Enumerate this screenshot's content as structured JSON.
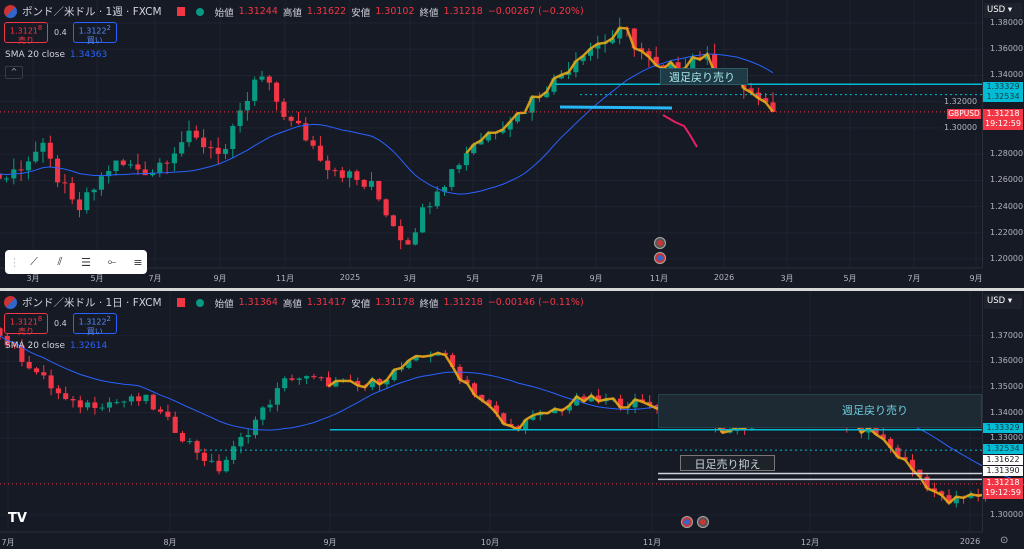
{
  "colors": {
    "up": "#089981",
    "down": "#f23645",
    "sma": "#2962ff",
    "annot": "#e6a817",
    "level": "#00bcd4",
    "bg": "#161a25"
  },
  "weekly": {
    "symbol": "ポンド／米ドル · 1週 · FXCM",
    "ohlc": {
      "open_label": "始値",
      "open": "1.31244",
      "high_label": "高値",
      "high": "1.31622",
      "low_label": "安値",
      "low": "1.30102",
      "close_label": "終値",
      "close": "1.31218",
      "change": "−0.00267 (−0.20%)"
    },
    "sell": {
      "price": "1.3121",
      "sup": "8",
      "label": "売り"
    },
    "spread": "0.4",
    "buy": {
      "price": "1.3122",
      "sup": "2",
      "label": "買い"
    },
    "sma": {
      "label": "SMA 20 close",
      "value": "1.34363"
    },
    "currency": "USD",
    "symbol_tag": "GBPUSD",
    "tags": {
      "level1": "1.33329",
      "level2": "1.32534",
      "price": "1.31218",
      "countdown": "19:12:59"
    },
    "annotation": "週足戻り売り",
    "drawing_toolbar": [
      "trend-line-icon",
      "parallel-channel-icon",
      "fib-retracement-icon",
      "horizontal-ray-icon",
      "horizontal-lines-icon"
    ]
  },
  "daily": {
    "symbol": "ポンド／米ドル · 1日 · FXCM",
    "ohlc": {
      "open_label": "始値",
      "open": "1.31364",
      "high_label": "高値",
      "high": "1.31417",
      "low_label": "安値",
      "low": "1.31178",
      "close_label": "終値",
      "close": "1.31218",
      "change": "−0.00146 (−0.11%)"
    },
    "sell": {
      "price": "1.3121",
      "sup": "8",
      "label": "売り"
    },
    "spread": "0.4",
    "buy": {
      "price": "1.3122",
      "sup": "2",
      "label": "買い"
    },
    "sma": {
      "label": "SMA 20 close",
      "value": "1.32614"
    },
    "currency": "USD",
    "tags": {
      "level1": "1.33329",
      "level2": "1.32534",
      "white1": "1.31622",
      "white2": "1.31390",
      "price": "1.31218",
      "countdown": "19:12:59"
    },
    "annotation_weekly": "週足戻り売り",
    "annotation_daily": "日足売り抑え"
  },
  "chart_data": [
    {
      "type": "candlestick",
      "timeframe": "1W",
      "ylim": [
        1.19,
        1.39
      ],
      "yticks": [
        "1.38000",
        "1.36000",
        "1.34000",
        "1.32000",
        "1.30000",
        "1.28000",
        "1.26000",
        "1.24000",
        "1.22000",
        "1.20000"
      ],
      "xticks": [
        "3月",
        "5月",
        "7月",
        "9月",
        "11月",
        "2025",
        "3月",
        "5月",
        "7月",
        "9月",
        "11月",
        "2026",
        "3月",
        "5月",
        "7月",
        "9月"
      ],
      "close_path": [
        [
          "2024-01",
          1.27
        ],
        [
          "2024-02",
          1.262
        ],
        [
          "2024-03",
          1.283
        ],
        [
          "2024-04",
          1.238
        ],
        [
          "2024-05",
          1.272
        ],
        [
          "2024-06",
          1.268
        ],
        [
          "2024-07",
          1.292
        ],
        [
          "2024-08",
          1.283
        ],
        [
          "2024-09",
          1.338
        ],
        [
          "2024-10",
          1.3
        ],
        [
          "2024-11",
          1.27
        ],
        [
          "2024-12",
          1.255
        ],
        [
          "2025-01",
          1.215
        ],
        [
          "2025-02",
          1.26
        ],
        [
          "2025-03",
          1.292
        ],
        [
          "2025-04",
          1.31
        ],
        [
          "2025-05",
          1.335
        ],
        [
          "2025-06",
          1.362
        ],
        [
          "2025-07",
          1.372
        ],
        [
          "2025-08",
          1.342
        ],
        [
          "2025-09",
          1.355
        ],
        [
          "2025-10",
          1.338
        ],
        [
          "2025-11",
          1.312
        ]
      ],
      "levels": [
        1.33329,
        1.32534
      ],
      "last": 1.31218
    },
    {
      "type": "candlestick",
      "timeframe": "1D",
      "ylim": [
        1.295,
        1.375
      ],
      "yticks": [
        "1.37000",
        "1.36000",
        "1.35000",
        "1.34000",
        "1.33000",
        "1.30000"
      ],
      "xticks": [
        "7月",
        "8月",
        "9月",
        "10月",
        "11月",
        "12月",
        "2026"
      ],
      "close_path": [
        [
          "2025-07-01",
          1.37
        ],
        [
          "2025-07-15",
          1.343
        ],
        [
          "2025-07-25",
          1.345
        ],
        [
          "2025-08-01",
          1.318
        ],
        [
          "2025-08-14",
          1.354
        ],
        [
          "2025-08-29",
          1.35
        ],
        [
          "2025-09-17",
          1.364
        ],
        [
          "2025-09-26",
          1.334
        ],
        [
          "2025-10-01",
          1.345
        ],
        [
          "2025-10-08",
          1.343
        ],
        [
          "2025-10-14",
          1.333
        ],
        [
          "2025-10-17",
          1.343
        ],
        [
          "2025-10-24",
          1.332
        ],
        [
          "2025-11-05",
          1.305
        ],
        [
          "2025-11-10",
          1.312
        ]
      ],
      "levels": [
        1.33329,
        1.32534,
        1.31622,
        1.3139
      ],
      "last": 1.31218
    }
  ]
}
